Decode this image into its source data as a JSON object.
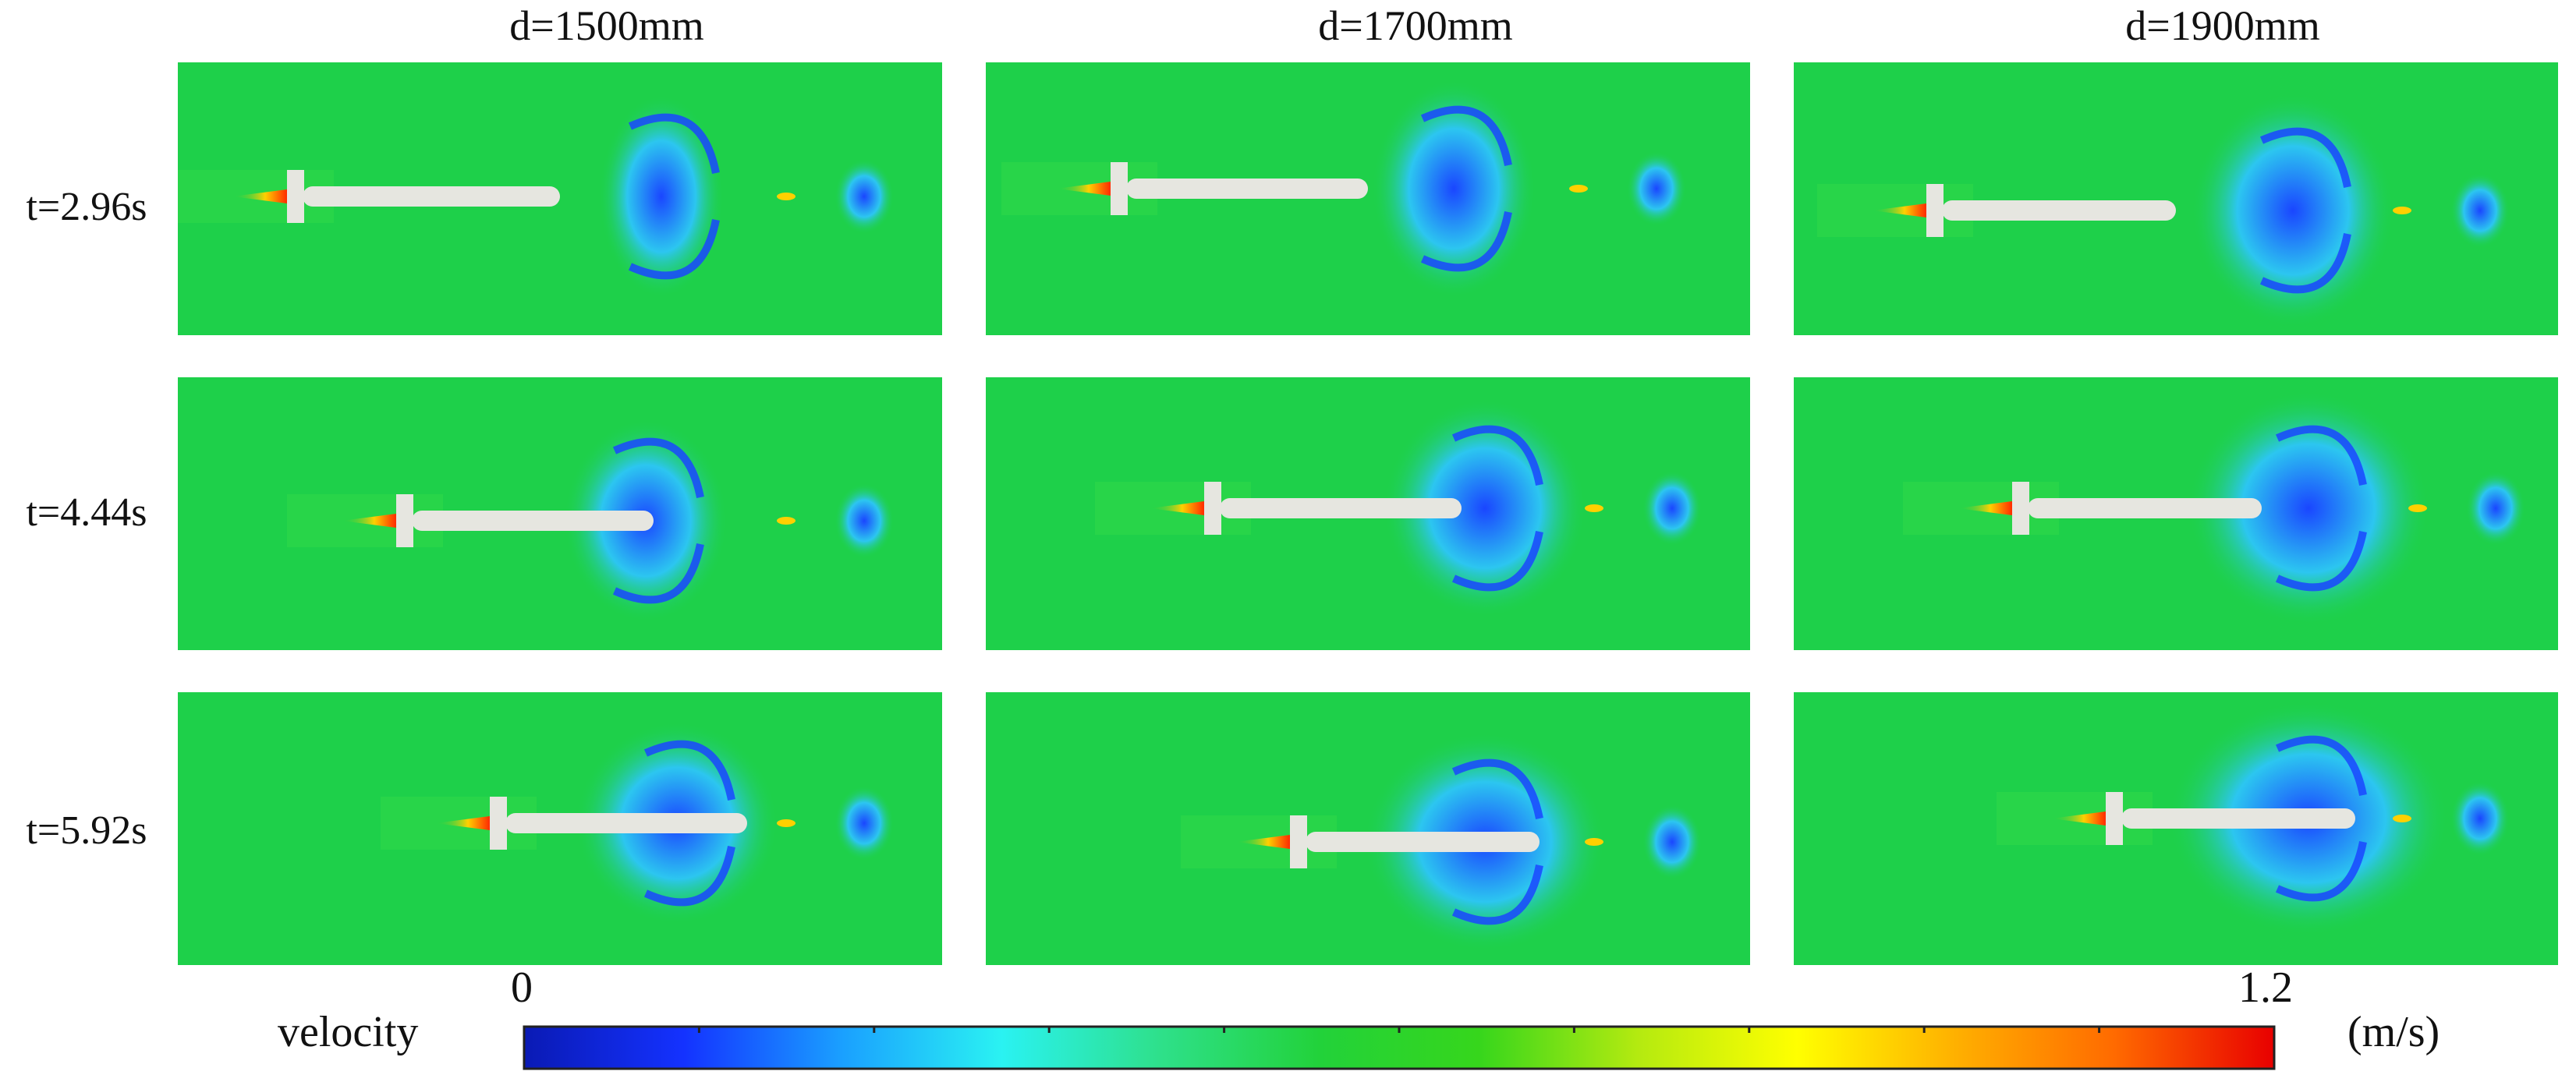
{
  "columns": [
    {
      "label": "d=1500mm",
      "variant": 0
    },
    {
      "label": "d=1700mm",
      "variant": 1
    },
    {
      "label": "d=1900mm",
      "variant": 2
    }
  ],
  "rows": [
    {
      "label": "t=2.96s",
      "stage": 0
    },
    {
      "label": "t=4.44s",
      "stage": 1
    },
    {
      "label": "t=5.92s",
      "stage": 2
    }
  ],
  "colorbar": {
    "label": "velocity",
    "unit": "(m/s)",
    "min_label": "0",
    "max_label": "1.2",
    "colors": [
      "#0a1ab4",
      "#1432ff",
      "#1aa0ff",
      "#2af2f2",
      "#2ee08a",
      "#22d23a",
      "#36d61c",
      "#b4ea10",
      "#ffff00",
      "#ffb000",
      "#ff6a00",
      "#e80000"
    ],
    "ticks": 10
  },
  "panel_colors": {
    "background": "#1ed04a",
    "hull": "#e6e6e0",
    "wake_low": "#1a46ff",
    "wake_mid": "#2cc6f0",
    "jet_hot": "#ff2a00",
    "jet_warm": "#ffd000"
  }
}
